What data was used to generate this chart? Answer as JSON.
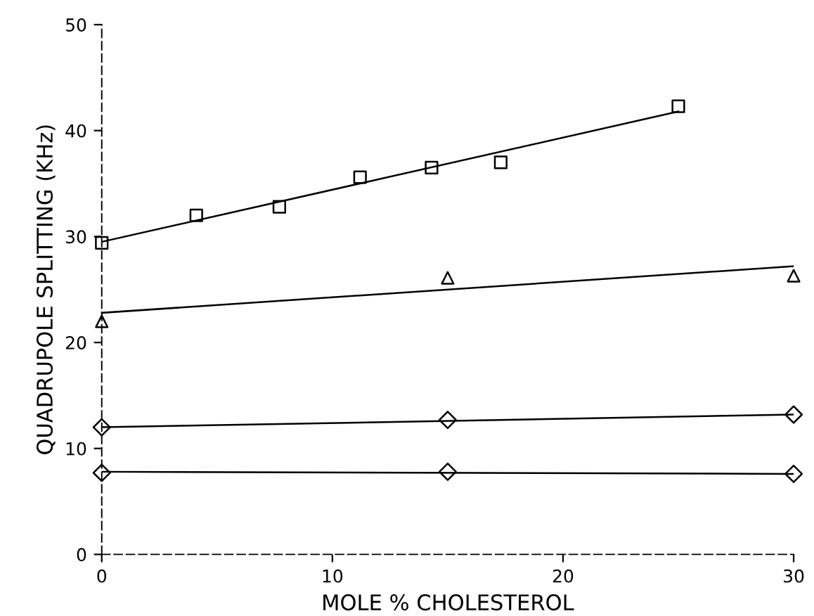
{
  "chart_data": {
    "type": "scatter",
    "xlabel": "MOLE % CHOLESTEROL",
    "ylabel": "QUADRUPOLE SPLITTING (KHz)",
    "xlim": [
      0,
      30
    ],
    "ylim": [
      0,
      50
    ],
    "xticks": [
      0,
      10,
      20,
      30
    ],
    "yticks": [
      0,
      10,
      20,
      30,
      40,
      50
    ],
    "grid": false,
    "legend": false,
    "series": [
      {
        "marker": "square",
        "color": "#000000",
        "x": [
          0,
          4.1,
          7.7,
          11.2,
          14.3,
          17.3,
          25
        ],
        "values": [
          29.4,
          32.0,
          32.8,
          35.6,
          36.5,
          37.0,
          42.3
        ]
      },
      {
        "type": "line",
        "marker": "none",
        "color": "#000000",
        "x": [
          0,
          25
        ],
        "values": [
          29.5,
          41.8
        ]
      },
      {
        "marker": "triangle",
        "color": "#000000",
        "x": [
          0,
          15,
          30
        ],
        "values": [
          22.0,
          26.1,
          26.3
        ]
      },
      {
        "type": "line",
        "marker": "none",
        "color": "#000000",
        "x": [
          0,
          30
        ],
        "values": [
          22.8,
          27.2
        ]
      },
      {
        "marker": "diamond",
        "color": "#000000",
        "x": [
          0,
          15,
          30
        ],
        "values": [
          12.0,
          12.7,
          13.2
        ]
      },
      {
        "type": "line",
        "marker": "none",
        "color": "#000000",
        "x": [
          0,
          30
        ],
        "values": [
          12.0,
          13.2
        ]
      },
      {
        "marker": "diamond",
        "color": "#000000",
        "x": [
          0,
          15,
          30
        ],
        "values": [
          7.7,
          7.8,
          7.6
        ]
      },
      {
        "type": "line",
        "marker": "none",
        "color": "#000000",
        "x": [
          0,
          30
        ],
        "values": [
          7.8,
          7.6
        ]
      }
    ]
  }
}
